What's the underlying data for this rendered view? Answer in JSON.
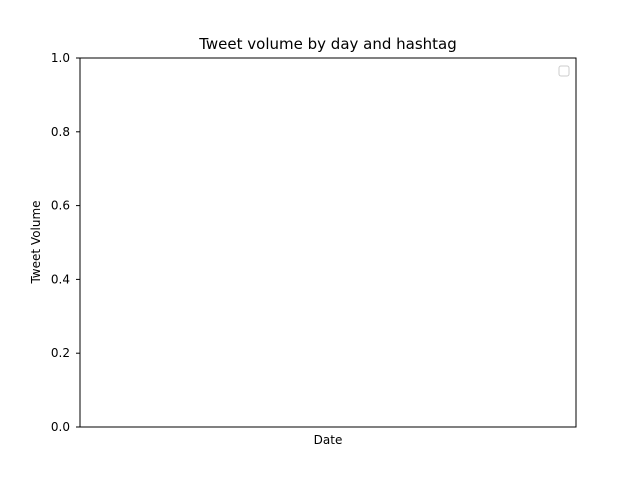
{
  "chart_data": {
    "type": "line",
    "title": "Tweet volume by day and hashtag",
    "xlabel": "Date",
    "ylabel": "Tweet Volume",
    "ylim": [
      0,
      1
    ],
    "y_ticks": [
      "0.0",
      "0.2",
      "0.4",
      "0.6",
      "0.8",
      "1.0"
    ],
    "x_ticks": [],
    "series": [],
    "grid": false,
    "legend": "top-right",
    "legend_entries": []
  }
}
